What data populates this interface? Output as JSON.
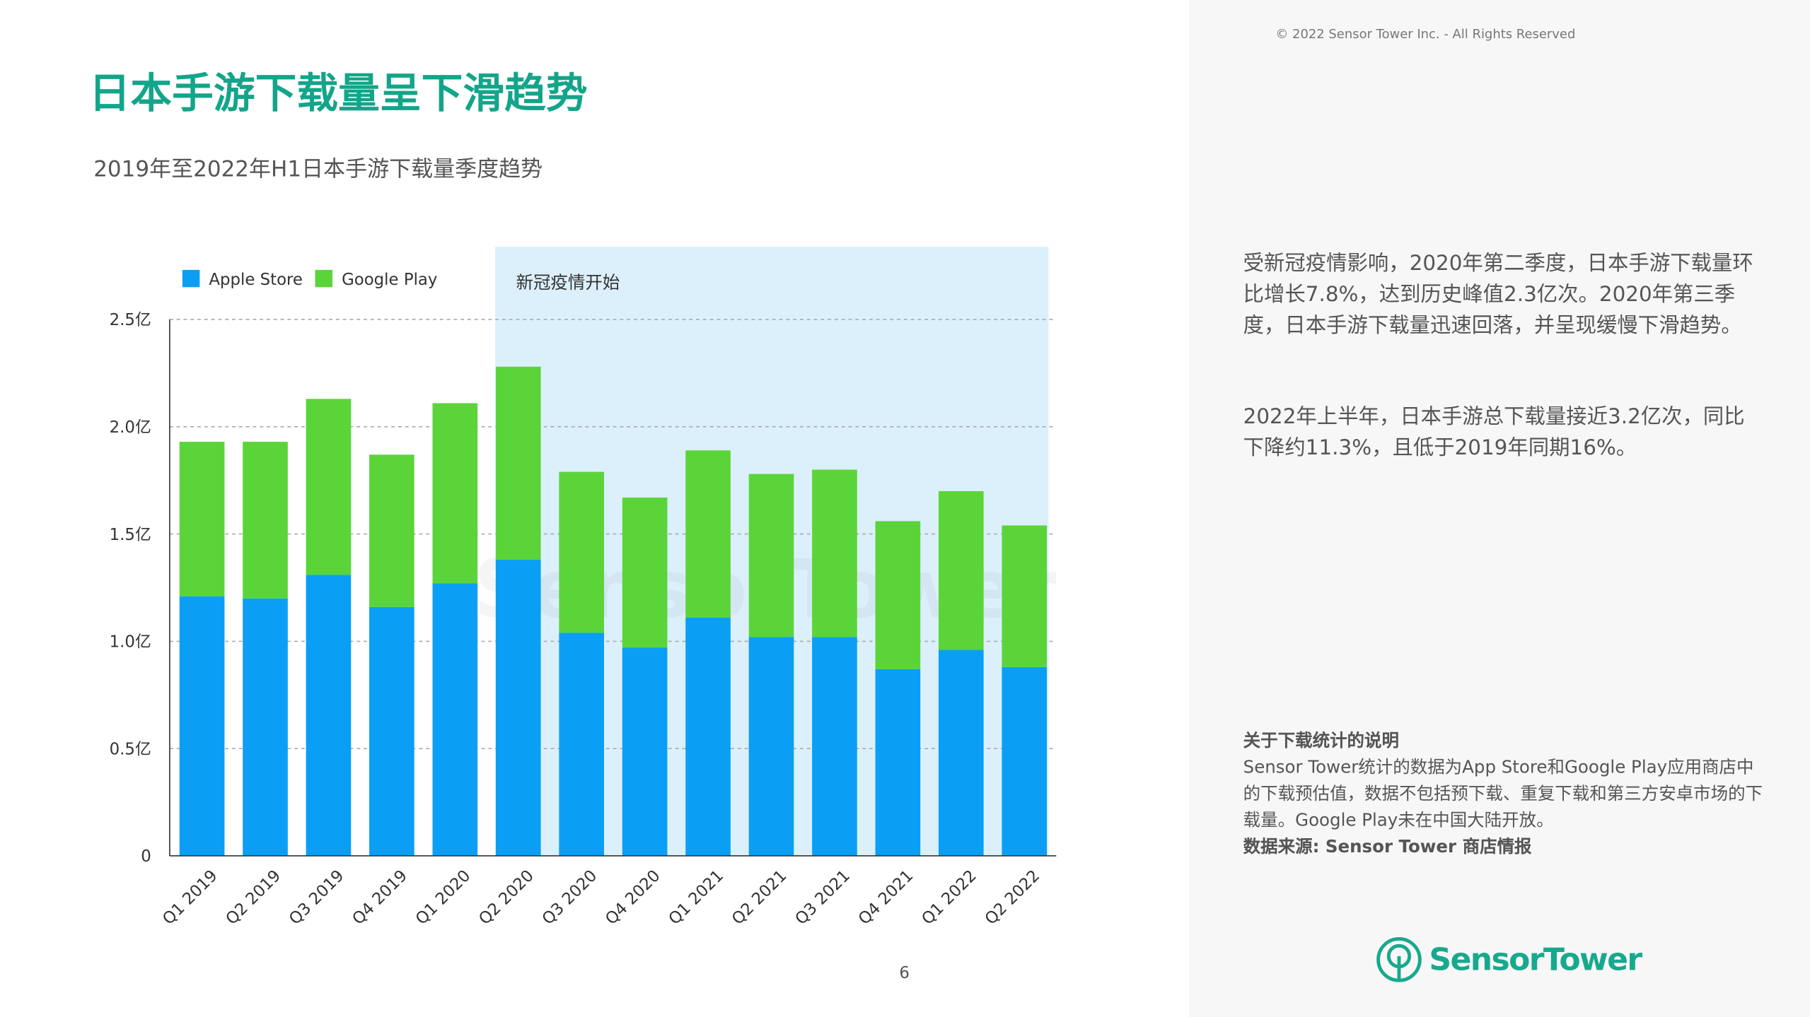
{
  "header": {
    "title": "日本手游下载量呈下滑趋势",
    "subtitle": "2019年至2022年H1日本手游下载量季度趋势"
  },
  "copyright": "© 2022 Sensor Tower Inc. - All Rights Reserved",
  "page_number": "6",
  "side": {
    "para1": "受新冠疫情影响，2020年第二季度，日本手游下载量环比增长7.8%，达到历史峰值2.3亿次。2020年第三季度，日本手游下载量迅速回落，并呈现缓慢下滑趋势。",
    "para2": "2022年上半年，日本手游总下载量接近3.2亿次，同比下降约11.3%，且低于2019年同期16%。",
    "note_title": "关于下载统计的说明",
    "note_body": "Sensor Tower统计的数据为App Store和Google Play应用商店中的下载预估值，数据不包括预下载、重复下载和第三方安卓市场的下载量。Google Play未在中国大陆开放。",
    "source": "数据来源: Sensor Tower 商店情报"
  },
  "logo": {
    "text": "SensorTower",
    "watermark": "SensorTower"
  },
  "chart_data": {
    "type": "bar",
    "stacked": true,
    "categories": [
      "Q1 2019",
      "Q2 2019",
      "Q3 2019",
      "Q4 2019",
      "Q1 2020",
      "Q2 2020",
      "Q3 2020",
      "Q4 2020",
      "Q1 2021",
      "Q2 2021",
      "Q3 2021",
      "Q4 2021",
      "Q1 2022",
      "Q2 2022"
    ],
    "series": [
      {
        "name": "Apple Store",
        "color": "#0a9ff5",
        "values": [
          1.21,
          1.2,
          1.31,
          1.16,
          1.27,
          1.38,
          1.04,
          0.97,
          1.11,
          1.02,
          1.02,
          0.87,
          0.96,
          0.88
        ]
      },
      {
        "name": "Google Play",
        "color": "#5bd43a",
        "values": [
          0.72,
          0.73,
          0.82,
          0.71,
          0.84,
          0.9,
          0.75,
          0.7,
          0.78,
          0.76,
          0.78,
          0.69,
          0.74,
          0.66
        ]
      }
    ],
    "ylim": [
      0,
      2.5
    ],
    "yticks": [
      {
        "v": 0,
        "label": "0"
      },
      {
        "v": 0.5,
        "label": "0.5亿"
      },
      {
        "v": 1,
        "label": "1.0亿"
      },
      {
        "v": 1.5,
        "label": "1.5亿"
      },
      {
        "v": 2,
        "label": "2.0亿"
      },
      {
        "v": 2.5,
        "label": "2.5亿"
      }
    ],
    "grid": true,
    "legend": "top-left",
    "annotation": {
      "label": "新冠疫情开始",
      "from": "Q2 2020",
      "to": "Q2 2022",
      "color": "#dcf0fb"
    }
  }
}
